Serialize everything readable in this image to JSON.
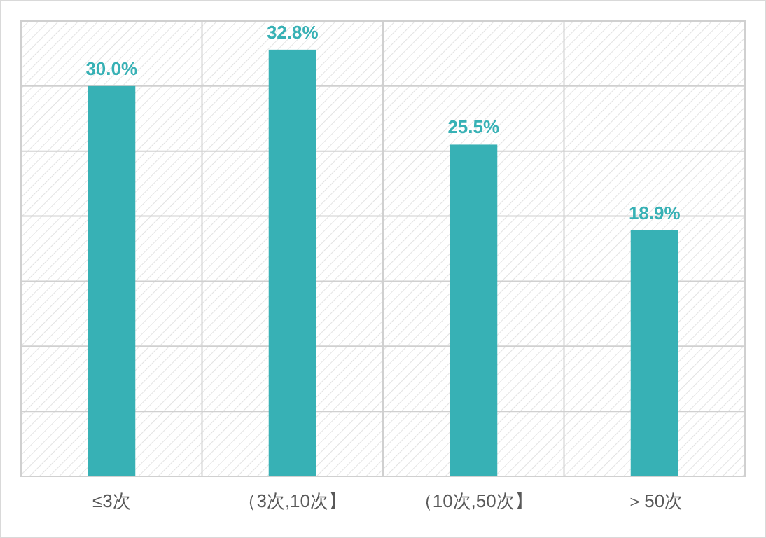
{
  "chart_data": {
    "type": "bar",
    "categories": [
      "≤3次",
      "（3次,10次】",
      "（10次,50次】",
      "＞50次"
    ],
    "values": [
      30.0,
      32.8,
      25.5,
      18.9
    ],
    "value_labels": [
      "30.0%",
      "32.8%",
      "25.5%",
      "18.9%"
    ],
    "color": "#37b1b5",
    "ylim": [
      0,
      35
    ],
    "yticks": [
      {
        "value": 0,
        "label": null
      },
      {
        "value": 5,
        "label": null
      },
      {
        "value": 10,
        "label": null
      },
      {
        "value": 15,
        "label": null
      },
      {
        "value": 20,
        "label": null
      },
      {
        "value": 25,
        "label": null
      },
      {
        "value": 30,
        "label": null
      },
      {
        "value": 35,
        "label": null
      }
    ],
    "grid": true
  }
}
